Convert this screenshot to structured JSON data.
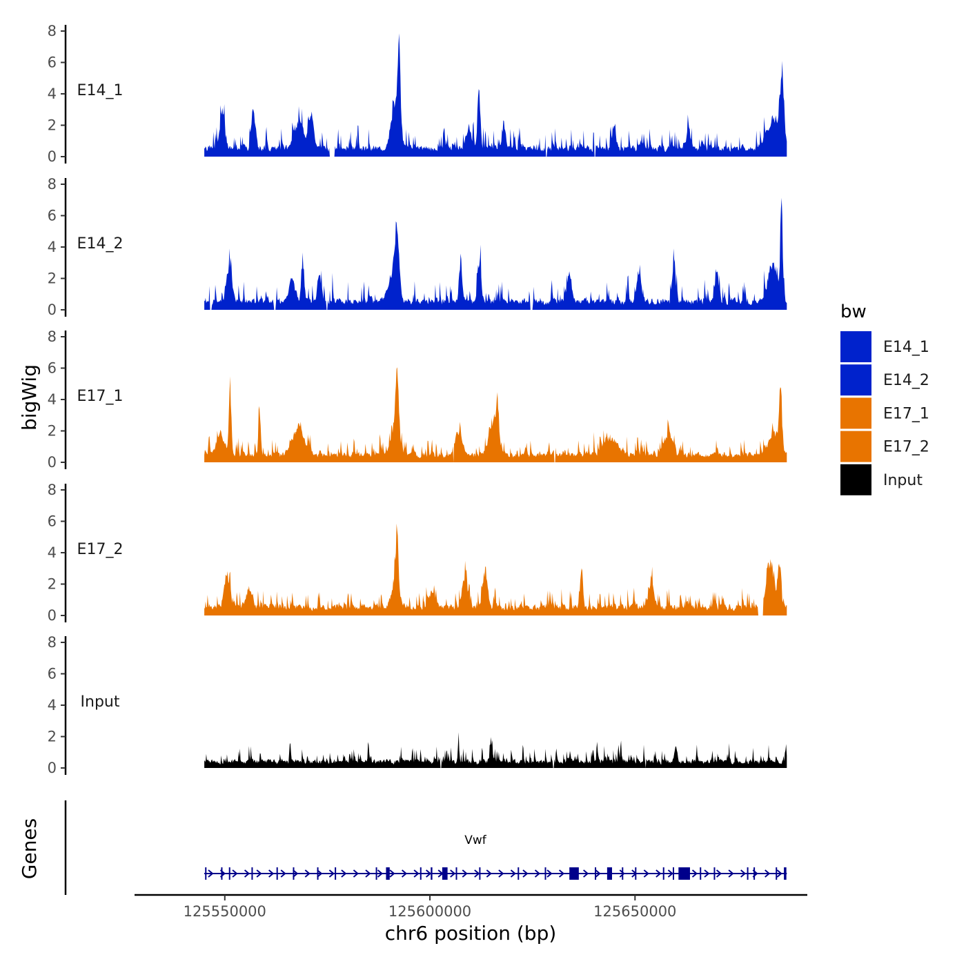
{
  "chart_data": {
    "type": "area",
    "title": "",
    "ylabel": "bigWig",
    "xlabel": "chr6 position (bp)",
    "genes_label": "Genes",
    "gene_name": "Vwf",
    "xlim": [
      125528000,
      125692000
    ],
    "data_range": [
      125545000,
      125687000
    ],
    "x_ticks": [
      125550000,
      125600000,
      125650000
    ],
    "x_tick_labels": [
      "125550000",
      "125600000",
      "125650000"
    ],
    "ylim": [
      0,
      8.5
    ],
    "y_ticks": [
      0,
      2,
      4,
      6,
      8
    ],
    "y_tick_labels": [
      "0",
      "2",
      "4",
      "6",
      "8"
    ],
    "legend": {
      "title": "bw",
      "entries": [
        {
          "label": "E14_1",
          "color": "#0022cc"
        },
        {
          "label": "E14_2",
          "color": "#0022cc"
        },
        {
          "label": "E17_1",
          "color": "#e87400"
        },
        {
          "label": "E17_2",
          "color": "#e87400"
        },
        {
          "label": "Input",
          "color": "#000000"
        }
      ]
    },
    "series": [
      {
        "name": "E14_1",
        "color": "#0022cc",
        "seed": 11,
        "base": 0.9,
        "noise": 1.3,
        "gaps": [
          [
            125575500,
            125576800
          ],
          [
            125628300,
            125628600
          ],
          [
            125640000,
            125640400
          ]
        ],
        "peaks": [
          {
            "x": 125549300,
            "h": 2.6,
            "w": 700
          },
          {
            "x": 125557000,
            "h": 2.6,
            "w": 700
          },
          {
            "x": 125568000,
            "h": 2.0,
            "w": 1500
          },
          {
            "x": 125571000,
            "h": 2.4,
            "w": 900
          },
          {
            "x": 125592500,
            "h": 6.8,
            "w": 500
          },
          {
            "x": 125591500,
            "h": 3.0,
            "w": 1300
          },
          {
            "x": 125609500,
            "h": 1.6,
            "w": 900
          },
          {
            "x": 125612000,
            "h": 3.6,
            "w": 500
          },
          {
            "x": 125618000,
            "h": 1.8,
            "w": 600
          },
          {
            "x": 125645000,
            "h": 1.5,
            "w": 600
          },
          {
            "x": 125663000,
            "h": 1.6,
            "w": 600
          },
          {
            "x": 125684000,
            "h": 2.0,
            "w": 2500
          },
          {
            "x": 125685800,
            "h": 4.0,
            "w": 600
          }
        ]
      },
      {
        "name": "E14_2",
        "color": "#0022cc",
        "seed": 23,
        "base": 0.9,
        "noise": 1.4,
        "gaps": [
          [
            125546300,
            125546800
          ],
          [
            125562000,
            125562400
          ],
          [
            125574700,
            125575000
          ],
          [
            125624500,
            125625000
          ]
        ],
        "peaks": [
          {
            "x": 125551000,
            "h": 2.4,
            "w": 900
          },
          {
            "x": 125566500,
            "h": 1.6,
            "w": 1000
          },
          {
            "x": 125569000,
            "h": 3.2,
            "w": 500
          },
          {
            "x": 125573000,
            "h": 2.0,
            "w": 600
          },
          {
            "x": 125592000,
            "h": 4.2,
            "w": 700
          },
          {
            "x": 125591000,
            "h": 2.0,
            "w": 1600
          },
          {
            "x": 125607500,
            "h": 3.0,
            "w": 500
          },
          {
            "x": 125612000,
            "h": 2.8,
            "w": 600
          },
          {
            "x": 125634000,
            "h": 2.0,
            "w": 700
          },
          {
            "x": 125651000,
            "h": 2.2,
            "w": 700
          },
          {
            "x": 125659500,
            "h": 3.2,
            "w": 500
          },
          {
            "x": 125670000,
            "h": 2.0,
            "w": 600
          },
          {
            "x": 125683500,
            "h": 2.8,
            "w": 1500
          },
          {
            "x": 125685700,
            "h": 6.8,
            "w": 400
          }
        ]
      },
      {
        "name": "E17_1",
        "color": "#e87400",
        "seed": 37,
        "base": 0.8,
        "noise": 1.0,
        "gaps": [
          [
            125605600,
            125605900
          ],
          [
            125630300,
            125630600
          ]
        ],
        "peaks": [
          {
            "x": 125551300,
            "h": 4.4,
            "w": 400
          },
          {
            "x": 125549000,
            "h": 1.4,
            "w": 1500
          },
          {
            "x": 125558500,
            "h": 3.4,
            "w": 400
          },
          {
            "x": 125568000,
            "h": 1.8,
            "w": 2200
          },
          {
            "x": 125592000,
            "h": 4.2,
            "w": 500
          },
          {
            "x": 125591500,
            "h": 2.0,
            "w": 1400
          },
          {
            "x": 125607000,
            "h": 1.6,
            "w": 1300
          },
          {
            "x": 125615500,
            "h": 2.6,
            "w": 1500
          },
          {
            "x": 125616500,
            "h": 2.6,
            "w": 400
          },
          {
            "x": 125644000,
            "h": 1.2,
            "w": 2500
          },
          {
            "x": 125658000,
            "h": 1.5,
            "w": 1400
          },
          {
            "x": 125684000,
            "h": 1.6,
            "w": 2000
          },
          {
            "x": 125685500,
            "h": 4.6,
            "w": 400
          }
        ]
      },
      {
        "name": "E17_2",
        "color": "#e87400",
        "seed": 53,
        "base": 0.9,
        "noise": 1.1,
        "gaps": [
          [
            125680000,
            125681200
          ]
        ],
        "peaks": [
          {
            "x": 125550500,
            "h": 2.4,
            "w": 900
          },
          {
            "x": 125556000,
            "h": 1.4,
            "w": 1000
          },
          {
            "x": 125592000,
            "h": 4.6,
            "w": 400
          },
          {
            "x": 125591500,
            "h": 1.8,
            "w": 1300
          },
          {
            "x": 125600500,
            "h": 1.0,
            "w": 1200
          },
          {
            "x": 125608500,
            "h": 2.0,
            "w": 1000
          },
          {
            "x": 125613500,
            "h": 2.8,
            "w": 800
          },
          {
            "x": 125637000,
            "h": 2.6,
            "w": 500
          },
          {
            "x": 125654000,
            "h": 2.0,
            "w": 800
          },
          {
            "x": 125683000,
            "h": 3.4,
            "w": 1300
          },
          {
            "x": 125685200,
            "h": 3.0,
            "w": 500
          }
        ]
      },
      {
        "name": "Input",
        "color": "#000000",
        "seed": 71,
        "base": 0.7,
        "noise": 1.0,
        "gaps": [
          [
            125602500,
            125602800
          ],
          [
            125630000,
            125630200
          ],
          [
            125652500,
            125652700
          ]
        ],
        "peaks": [
          {
            "x": 125585000,
            "h": 1.4,
            "w": 200
          },
          {
            "x": 125607000,
            "h": 2.0,
            "w": 200
          },
          {
            "x": 125615000,
            "h": 0.8,
            "w": 400
          },
          {
            "x": 125660000,
            "h": 1.0,
            "w": 500
          }
        ]
      }
    ],
    "gene_model": {
      "strand": "+",
      "start": 125545000,
      "end": 125687000,
      "exons": [
        {
          "start": 125545200,
          "end": 125545500
        },
        {
          "start": 125549100,
          "end": 125549400
        },
        {
          "start": 125551000,
          "end": 125551300
        },
        {
          "start": 125556500,
          "end": 125556800
        },
        {
          "start": 125562600,
          "end": 125562900
        },
        {
          "start": 125566600,
          "end": 125566900
        },
        {
          "start": 125572500,
          "end": 125572800
        },
        {
          "start": 125576800,
          "end": 125577100
        },
        {
          "start": 125586800,
          "end": 125587100
        },
        {
          "start": 125589300,
          "end": 125590200
        },
        {
          "start": 125597600,
          "end": 125597900
        },
        {
          "start": 125600200,
          "end": 125600600
        },
        {
          "start": 125603000,
          "end": 125604300
        },
        {
          "start": 125606300,
          "end": 125606600
        },
        {
          "start": 125612000,
          "end": 125612300
        },
        {
          "start": 125621400,
          "end": 125621700
        },
        {
          "start": 125628000,
          "end": 125628300
        },
        {
          "start": 125634000,
          "end": 125636300
        },
        {
          "start": 125640200,
          "end": 125640500
        },
        {
          "start": 125643200,
          "end": 125644400
        },
        {
          "start": 125646800,
          "end": 125647100
        },
        {
          "start": 125650000,
          "end": 125650300
        },
        {
          "start": 125656800,
          "end": 125657100
        },
        {
          "start": 125659200,
          "end": 125659500
        },
        {
          "start": 125660600,
          "end": 125663400
        },
        {
          "start": 125665800,
          "end": 125666100
        },
        {
          "start": 125669200,
          "end": 125669500
        },
        {
          "start": 125677300,
          "end": 125677600
        },
        {
          "start": 125678900,
          "end": 125679200
        },
        {
          "start": 125684300,
          "end": 125684600
        },
        {
          "start": 125686300,
          "end": 125686900
        }
      ]
    }
  }
}
